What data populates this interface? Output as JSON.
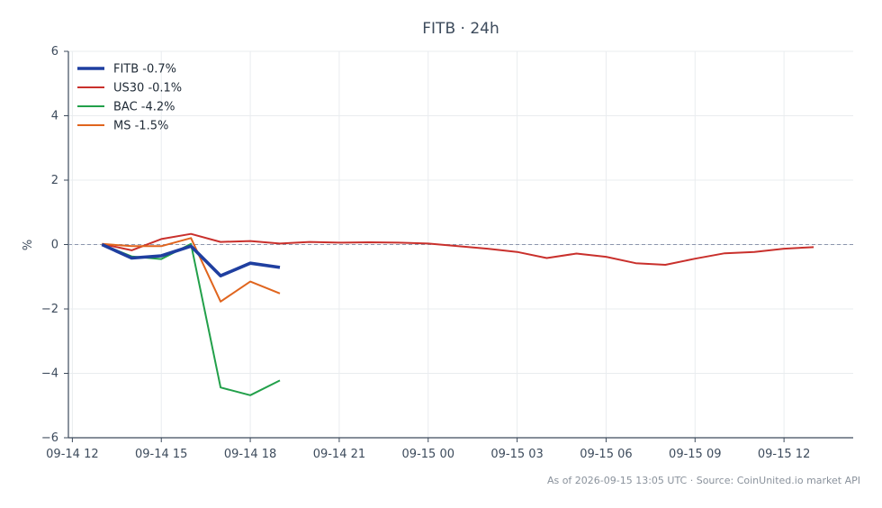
{
  "chart_data": {
    "type": "line",
    "title": "FITB · 24h",
    "xlabel": "",
    "ylabel": "%",
    "ylim": [
      -6,
      6
    ],
    "yticks": [
      -6,
      -4,
      -2,
      0,
      2,
      4,
      6
    ],
    "ytick_labels": [
      "−6",
      "−4",
      "−2",
      "0",
      "2",
      "4",
      "6"
    ],
    "xlim": [
      "2026-09-14 11:52",
      "2026-09-15 14:20"
    ],
    "xticks": [
      "2026-09-14 12:00",
      "2026-09-14 15:00",
      "2026-09-14 18:00",
      "2026-09-14 21:00",
      "2026-09-15 00:00",
      "2026-09-15 03:00",
      "2026-09-15 06:00",
      "2026-09-15 09:00",
      "2026-09-15 12:00"
    ],
    "xtick_labels": [
      "09-14 12",
      "09-14 15",
      "09-14 18",
      "09-14 21",
      "09-15 00",
      "09-15 03",
      "09-15 06",
      "09-15 09",
      "09-15 12"
    ],
    "grid": true,
    "zero_line": true,
    "legend_position": "top-left",
    "series": [
      {
        "name": "FITB -0.7%",
        "color": "#1f3fa0",
        "emphasis": true,
        "x": [
          "2026-09-14 13:00",
          "2026-09-14 14:00",
          "2026-09-14 15:00",
          "2026-09-14 16:00",
          "2026-09-14 17:00",
          "2026-09-14 18:00",
          "2026-09-14 19:00"
        ],
        "values": [
          0.0,
          -0.42,
          -0.35,
          -0.05,
          -0.97,
          -0.58,
          -0.71
        ]
      },
      {
        "name": "US30 -0.1%",
        "color": "#c9302c",
        "x": [
          "2026-09-14 13:00",
          "2026-09-14 14:00",
          "2026-09-14 15:00",
          "2026-09-14 16:00",
          "2026-09-14 17:00",
          "2026-09-14 18:00",
          "2026-09-14 19:00",
          "2026-09-14 20:00",
          "2026-09-14 21:00",
          "2026-09-14 22:00",
          "2026-09-14 23:00",
          "2026-09-15 00:00",
          "2026-09-15 01:00",
          "2026-09-15 02:00",
          "2026-09-15 03:00",
          "2026-09-15 04:00",
          "2026-09-15 05:00",
          "2026-09-15 06:00",
          "2026-09-15 07:00",
          "2026-09-15 08:00",
          "2026-09-15 09:00",
          "2026-09-15 10:00",
          "2026-09-15 11:00",
          "2026-09-15 12:00",
          "2026-09-15 13:00"
        ],
        "values": [
          0.02,
          -0.18,
          0.17,
          0.33,
          0.08,
          0.11,
          0.03,
          0.08,
          0.06,
          0.07,
          0.06,
          0.03,
          -0.05,
          -0.13,
          -0.23,
          -0.42,
          -0.28,
          -0.38,
          -0.58,
          -0.63,
          -0.44,
          -0.27,
          -0.23,
          -0.13,
          -0.08
        ]
      },
      {
        "name": "BAC -4.2%",
        "color": "#22a04a",
        "x": [
          "2026-09-14 13:00",
          "2026-09-14 14:00",
          "2026-09-14 15:00",
          "2026-09-14 16:00",
          "2026-09-14 17:00",
          "2026-09-14 18:00",
          "2026-09-14 19:00"
        ],
        "values": [
          0.0,
          -0.37,
          -0.45,
          0.02,
          -4.44,
          -4.68,
          -4.22
        ]
      },
      {
        "name": "MS -1.5%",
        "color": "#e0651e",
        "x": [
          "2026-09-14 13:00",
          "2026-09-14 14:00",
          "2026-09-14 15:00",
          "2026-09-14 16:00",
          "2026-09-14 17:00",
          "2026-09-14 18:00",
          "2026-09-14 19:00"
        ],
        "values": [
          0.02,
          -0.05,
          -0.05,
          0.2,
          -1.77,
          -1.15,
          -1.52
        ]
      }
    ]
  },
  "footer": "As of 2026-09-15 13:05 UTC · Source: CoinUnited.io market API"
}
